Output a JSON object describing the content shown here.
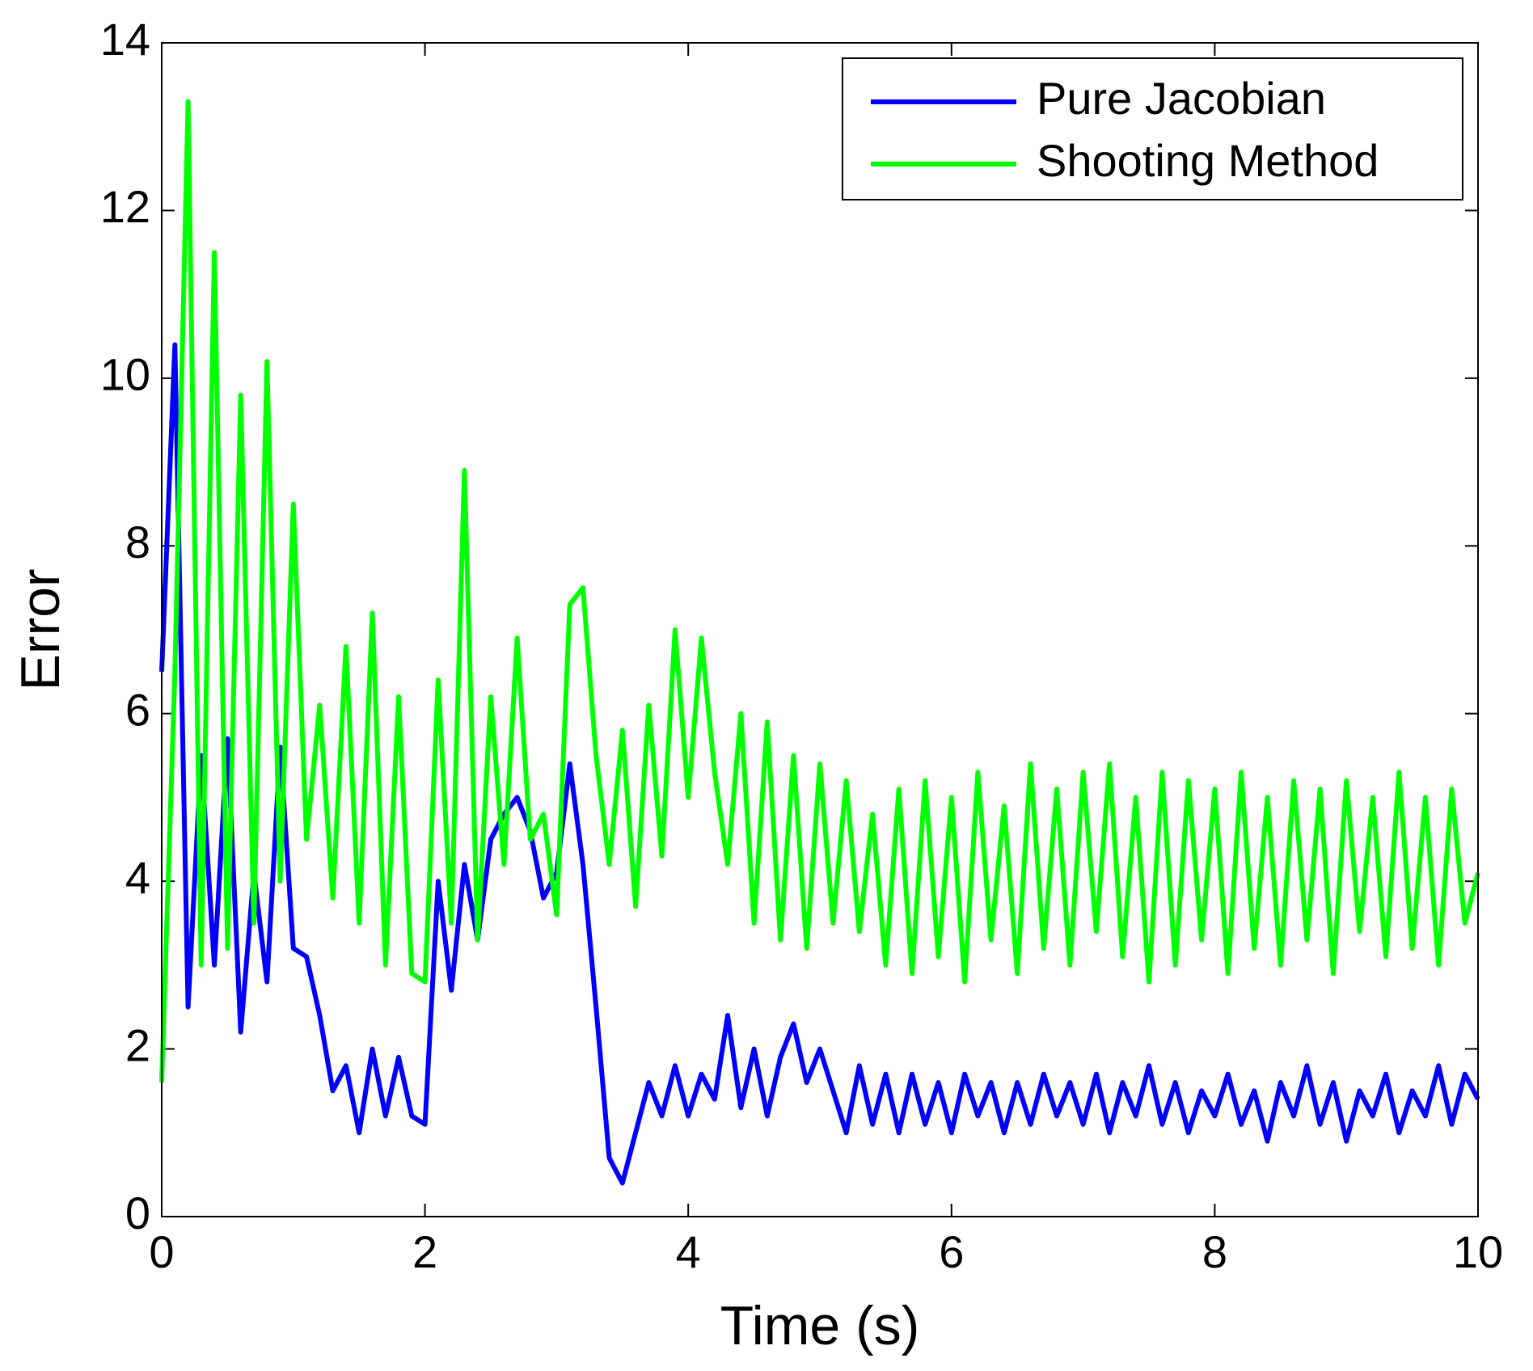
{
  "chart_data": {
    "type": "line",
    "xlabel": "Time (s)",
    "ylabel": "Error",
    "x": [
      0,
      0.1,
      0.2,
      0.3,
      0.4,
      0.5,
      0.6,
      0.7,
      0.8,
      0.9,
      1,
      1.1,
      1.2,
      1.3,
      1.4,
      1.5,
      1.6,
      1.7,
      1.8,
      1.9,
      2,
      2.1,
      2.2,
      2.3,
      2.4,
      2.5,
      2.6,
      2.7,
      2.8,
      2.9,
      3,
      3.1,
      3.2,
      3.3,
      3.4,
      3.5,
      3.6,
      3.7,
      3.8,
      3.9,
      4,
      4.1,
      4.2,
      4.3,
      4.4,
      4.5,
      4.6,
      4.7,
      4.8,
      4.9,
      5,
      5.1,
      5.2,
      5.3,
      5.4,
      5.5,
      5.6,
      5.7,
      5.8,
      5.9,
      6,
      6.1,
      6.2,
      6.3,
      6.4,
      6.5,
      6.6,
      6.7,
      6.8,
      6.9,
      7,
      7.1,
      7.2,
      7.3,
      7.4,
      7.5,
      7.6,
      7.7,
      7.8,
      7.9,
      8,
      8.1,
      8.2,
      8.3,
      8.4,
      8.5,
      8.6,
      8.7,
      8.8,
      8.9,
      9,
      9.1,
      9.2,
      9.3,
      9.4,
      9.5,
      9.6,
      9.7,
      9.8,
      9.9,
      10
    ],
    "series": [
      {
        "name": "Pure Jacobian",
        "color": "#0000ff",
        "values": [
          6.5,
          10.4,
          2.5,
          5.5,
          3.0,
          5.7,
          2.2,
          4.1,
          2.8,
          5.6,
          3.2,
          3.1,
          2.4,
          1.5,
          1.8,
          1.0,
          2.0,
          1.2,
          1.9,
          1.2,
          1.1,
          4.0,
          2.7,
          4.2,
          3.3,
          4.5,
          4.8,
          5.0,
          4.6,
          3.8,
          4.1,
          5.4,
          4.2,
          2.5,
          0.7,
          0.4,
          1.0,
          1.6,
          1.2,
          1.8,
          1.2,
          1.7,
          1.4,
          2.4,
          1.3,
          2.0,
          1.2,
          1.9,
          2.3,
          1.6,
          2.0,
          1.5,
          1.0,
          1.8,
          1.1,
          1.7,
          1.0,
          1.7,
          1.1,
          1.6,
          1.0,
          1.7,
          1.2,
          1.6,
          1.0,
          1.6,
          1.1,
          1.7,
          1.2,
          1.6,
          1.1,
          1.7,
          1.0,
          1.6,
          1.2,
          1.8,
          1.1,
          1.6,
          1.0,
          1.5,
          1.2,
          1.7,
          1.1,
          1.5,
          0.9,
          1.6,
          1.2,
          1.8,
          1.1,
          1.6,
          0.9,
          1.5,
          1.2,
          1.7,
          1.0,
          1.5,
          1.2,
          1.8,
          1.1,
          1.7,
          1.4
        ]
      },
      {
        "name": "Shooting Method",
        "color": "#00ff00",
        "values": [
          1.6,
          6.5,
          13.3,
          3.0,
          11.5,
          3.2,
          9.8,
          3.5,
          10.2,
          4.0,
          8.5,
          4.5,
          6.1,
          3.8,
          6.8,
          3.5,
          7.2,
          3.0,
          6.2,
          2.9,
          2.8,
          6.4,
          3.5,
          8.9,
          3.3,
          6.2,
          4.2,
          6.9,
          4.5,
          4.8,
          3.6,
          7.3,
          7.5,
          5.5,
          4.2,
          5.8,
          3.7,
          6.1,
          4.3,
          7.0,
          5.0,
          6.9,
          5.3,
          4.2,
          6.0,
          3.5,
          5.9,
          3.3,
          5.5,
          3.2,
          5.4,
          3.5,
          5.2,
          3.4,
          4.8,
          3.0,
          5.1,
          2.9,
          5.2,
          3.1,
          5.0,
          2.8,
          5.3,
          3.3,
          4.9,
          2.9,
          5.4,
          3.2,
          5.1,
          3.0,
          5.3,
          3.4,
          5.4,
          3.1,
          5.0,
          2.8,
          5.3,
          3.0,
          5.2,
          3.3,
          5.1,
          2.9,
          5.3,
          3.2,
          5.0,
          3.0,
          5.2,
          3.3,
          5.1,
          2.9,
          5.2,
          3.4,
          5.0,
          3.1,
          5.3,
          3.2,
          5.0,
          3.0,
          5.1,
          3.5,
          4.1
        ]
      }
    ],
    "xlim": [
      0,
      10
    ],
    "xticks": [
      0,
      2,
      4,
      6,
      8,
      10
    ],
    "ylim": [
      0,
      14
    ],
    "yticks": [
      0,
      2,
      4,
      6,
      8,
      10,
      12,
      14
    ],
    "legend": "upper right"
  }
}
